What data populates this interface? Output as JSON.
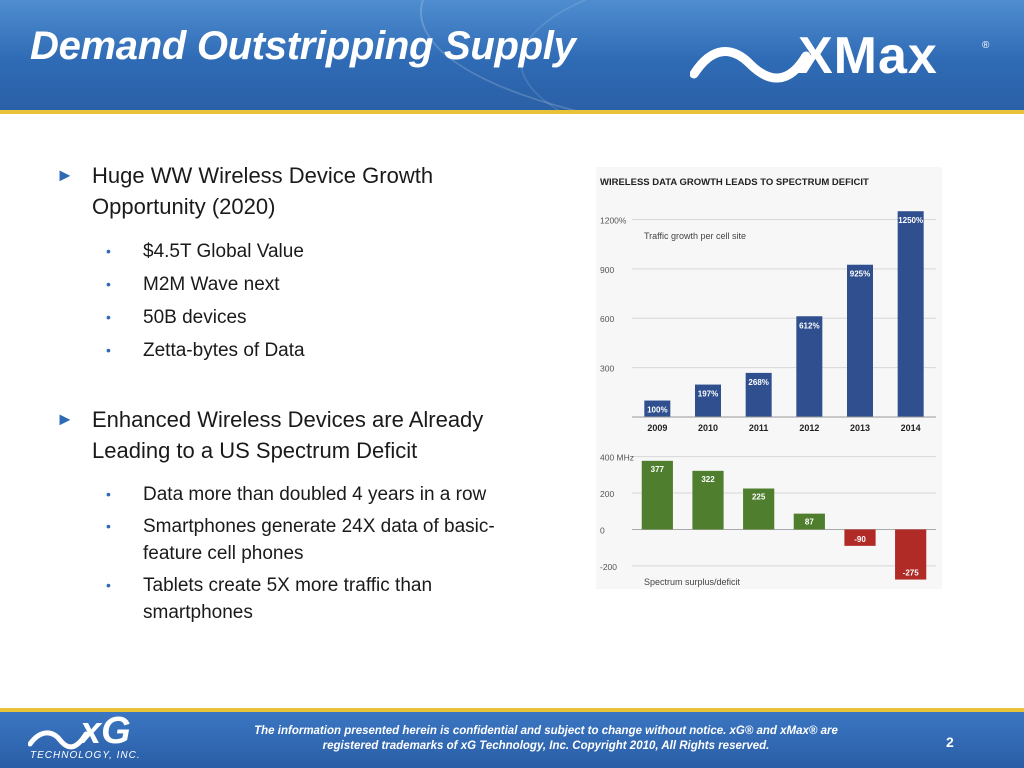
{
  "header": {
    "title": "Demand Outstripping Supply",
    "logo_text": "XMax",
    "logo_reg": "®"
  },
  "bullets": [
    {
      "text": "Huge WW Wireless Device Growth Opportunity (2020)",
      "subitems": [
        "$4.5T Global Value",
        "M2M Wave next",
        "50B devices",
        "Zetta-bytes of Data"
      ]
    },
    {
      "text": "Enhanced Wireless Devices are Already Leading to a US Spectrum Deficit",
      "subitems": [
        "Data more than doubled 4 years in a row",
        "Smartphones generate 24X data of basic-feature cell phones",
        "Tablets create 5X more traffic than smartphones"
      ]
    }
  ],
  "bullet_marker": "►",
  "subbullet_marker": "•",
  "chart_data": [
    {
      "type": "bar",
      "title": "WIRELESS DATA GROWTH LEADS TO SPECTRUM DEFICIT",
      "annotation": "Traffic growth per cell site",
      "categories": [
        "2009",
        "2010",
        "2011",
        "2012",
        "2013",
        "2014"
      ],
      "values": [
        100,
        197,
        268,
        612,
        925,
        1250
      ],
      "value_labels": [
        "100%",
        "197%",
        "268%",
        "612%",
        "925%",
        "1250%"
      ],
      "ytick_labels": [
        "1200%",
        "900",
        "600",
        "300"
      ],
      "ytick_values": [
        1200,
        900,
        600,
        300
      ],
      "ylim": [
        0,
        1300
      ],
      "grid": true,
      "color": "#2f4f8f"
    },
    {
      "type": "bar",
      "annotation": "Spectrum surplus/deficit",
      "categories": [
        "2009",
        "2010",
        "2011",
        "2012",
        "2013",
        "2014"
      ],
      "values": [
        377,
        322,
        225,
        87,
        -90,
        -275
      ],
      "value_labels": [
        "377",
        "322",
        "225",
        "87",
        "-90",
        "-275"
      ],
      "ytick_labels": [
        "400 MHz",
        "200",
        "0",
        "-200"
      ],
      "ytick_values": [
        400,
        200,
        0,
        -200
      ],
      "ylim": [
        -250,
        420
      ],
      "grid": true,
      "positive_color": "#4f7f2e",
      "negative_color": "#b02a26"
    }
  ],
  "footer": {
    "notice_line1": "The information presented herein is confidential and subject to change without notice. xG® and xMax® are",
    "notice_line2": "registered trademarks of xG Technology, Inc.  Copyright 2010, All Rights reserved.",
    "page_number": "2",
    "logo_text": "xG",
    "logo_subtext": "TECHNOLOGY, INC."
  }
}
